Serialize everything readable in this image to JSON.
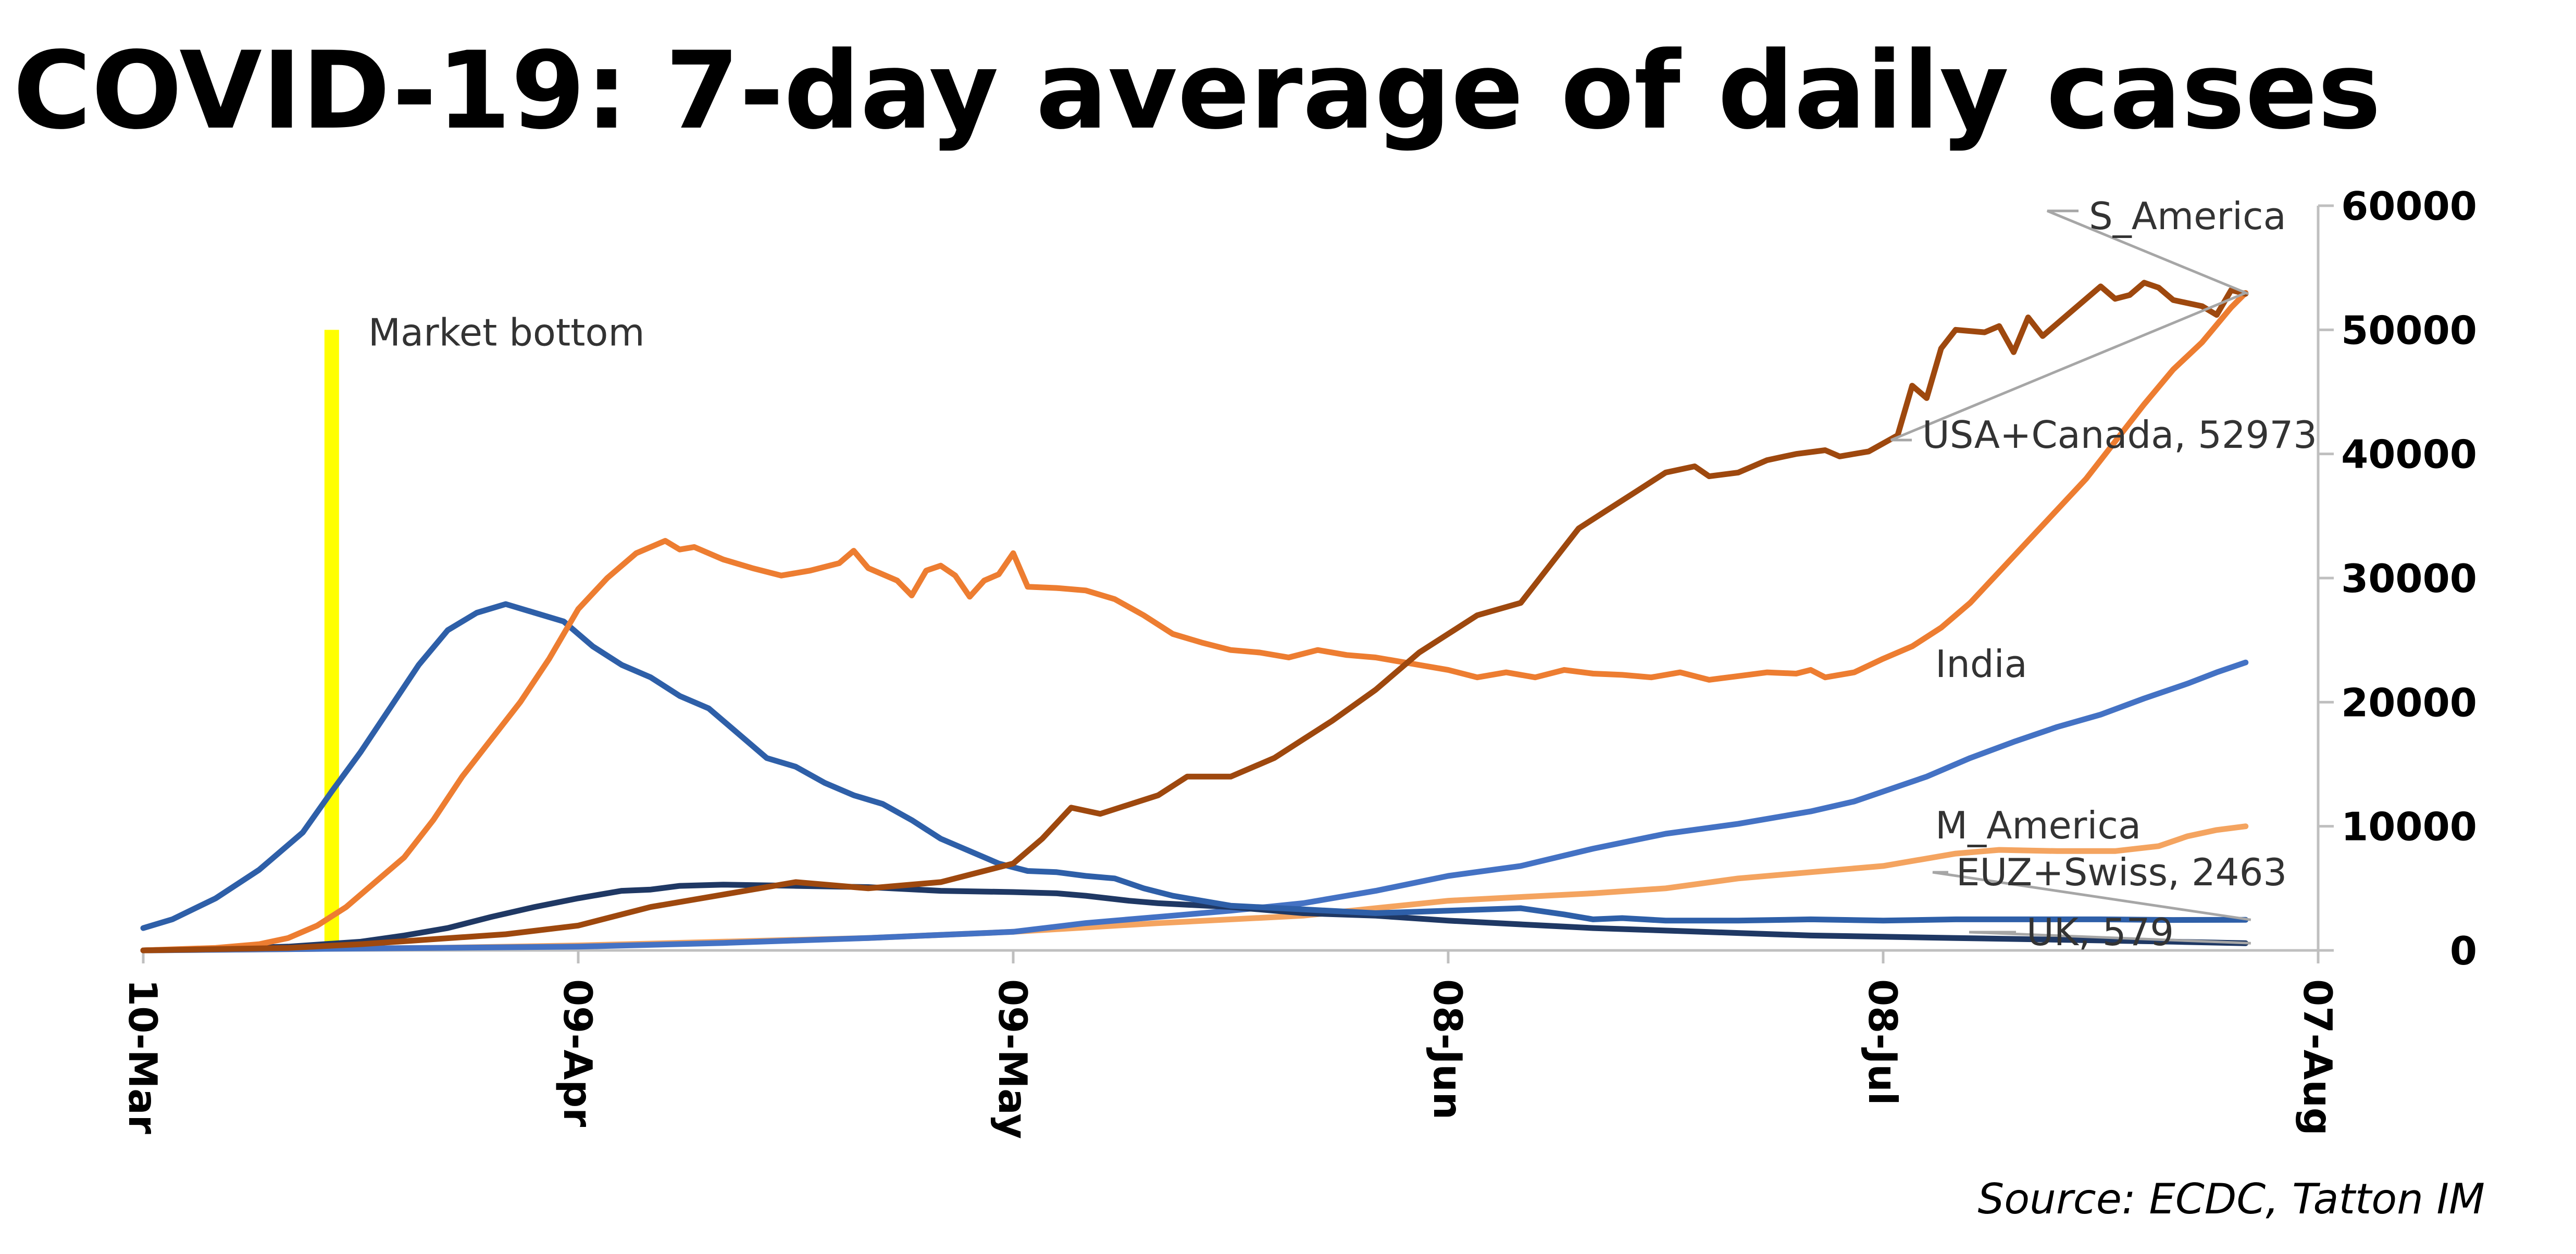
{
  "title": "COVID-19: 7-day average of daily cases",
  "source": "Source: ECDC, Tatton IM",
  "chart_data": {
    "type": "line",
    "title": "COVID-19: 7-day average of daily cases",
    "x_labels": [
      "10-Mar",
      "09-Apr",
      "09-May",
      "08-Jun",
      "08-Jul",
      "07-Aug"
    ],
    "x_range_days": [
      0,
      150
    ],
    "ylim": [
      0,
      60000
    ],
    "y_ticks": [
      0,
      10000,
      20000,
      30000,
      40000,
      50000,
      60000
    ],
    "y_axis_side": "right",
    "grid": false,
    "legend": "none (direct line labels)",
    "annotations": [
      {
        "label": "Market bottom",
        "x": "23-Mar",
        "y_range": [
          0,
          50000
        ],
        "color": "#FFFF00"
      }
    ],
    "series": [
      {
        "name": "S_America",
        "color": "#9E480E",
        "label": "S_America",
        "points": [
          [
            0,
            0
          ],
          [
            10,
            200
          ],
          [
            15,
            500
          ],
          [
            20,
            900
          ],
          [
            25,
            1300
          ],
          [
            30,
            2000
          ],
          [
            35,
            3500
          ],
          [
            40,
            4500
          ],
          [
            45,
            5500
          ],
          [
            50,
            5000
          ],
          [
            55,
            5500
          ],
          [
            60,
            7000
          ],
          [
            62,
            9000
          ],
          [
            64,
            11500
          ],
          [
            66,
            11000
          ],
          [
            70,
            12500
          ],
          [
            72,
            14000
          ],
          [
            75,
            14000
          ],
          [
            78,
            15500
          ],
          [
            80,
            17000
          ],
          [
            82,
            18500
          ],
          [
            85,
            21000
          ],
          [
            88,
            24000
          ],
          [
            90,
            25500
          ],
          [
            92,
            27000
          ],
          [
            95,
            28000
          ],
          [
            97,
            31000
          ],
          [
            99,
            34000
          ],
          [
            101,
            35500
          ],
          [
            103,
            37000
          ],
          [
            105,
            38500
          ],
          [
            107,
            39000
          ],
          [
            108,
            38200
          ],
          [
            110,
            38500
          ],
          [
            112,
            39500
          ],
          [
            114,
            40000
          ],
          [
            116,
            40300
          ],
          [
            117,
            39800
          ],
          [
            119,
            40200
          ],
          [
            121,
            41500
          ],
          [
            122,
            45500
          ],
          [
            123,
            44500
          ],
          [
            124,
            48500
          ],
          [
            125,
            50000
          ],
          [
            127,
            49800
          ],
          [
            128,
            50300
          ],
          [
            129,
            48200
          ],
          [
            130,
            51000
          ],
          [
            131,
            49500
          ],
          [
            133,
            51500
          ],
          [
            135,
            53500
          ],
          [
            136,
            52500
          ],
          [
            137,
            52800
          ],
          [
            138,
            53800
          ],
          [
            139,
            53400
          ],
          [
            140,
            52400
          ],
          [
            142,
            51900
          ],
          [
            143,
            51200
          ],
          [
            144,
            53200
          ],
          [
            145,
            52900
          ]
        ]
      },
      {
        "name": "USA+Canada",
        "color": "#ED7D31",
        "label": "USA+Canada, 52973",
        "points": [
          [
            0,
            0
          ],
          [
            5,
            200
          ],
          [
            8,
            500
          ],
          [
            10,
            1000
          ],
          [
            12,
            2000
          ],
          [
            14,
            3500
          ],
          [
            16,
            5500
          ],
          [
            18,
            7500
          ],
          [
            20,
            10500
          ],
          [
            22,
            14000
          ],
          [
            24,
            17000
          ],
          [
            26,
            20000
          ],
          [
            28,
            23500
          ],
          [
            30,
            27500
          ],
          [
            32,
            30000
          ],
          [
            34,
            32000
          ],
          [
            36,
            33000
          ],
          [
            37,
            32300
          ],
          [
            38,
            32500
          ],
          [
            40,
            31500
          ],
          [
            42,
            30800
          ],
          [
            44,
            30200
          ],
          [
            46,
            30600
          ],
          [
            48,
            31200
          ],
          [
            49,
            32200
          ],
          [
            50,
            30800
          ],
          [
            52,
            29800
          ],
          [
            53,
            28600
          ],
          [
            54,
            30600
          ],
          [
            55,
            31000
          ],
          [
            56,
            30200
          ],
          [
            57,
            28500
          ],
          [
            58,
            29800
          ],
          [
            59,
            30300
          ],
          [
            60,
            32000
          ],
          [
            61,
            29300
          ],
          [
            63,
            29200
          ],
          [
            65,
            29000
          ],
          [
            67,
            28300
          ],
          [
            69,
            27000
          ],
          [
            71,
            25500
          ],
          [
            73,
            24800
          ],
          [
            75,
            24200
          ],
          [
            77,
            24000
          ],
          [
            79,
            23600
          ],
          [
            81,
            24200
          ],
          [
            83,
            23800
          ],
          [
            85,
            23600
          ],
          [
            87,
            23200
          ],
          [
            90,
            22600
          ],
          [
            92,
            22000
          ],
          [
            94,
            22400
          ],
          [
            96,
            22000
          ],
          [
            98,
            22600
          ],
          [
            100,
            22300
          ],
          [
            102,
            22200
          ],
          [
            104,
            22000
          ],
          [
            106,
            22400
          ],
          [
            108,
            21800
          ],
          [
            110,
            22100
          ],
          [
            112,
            22400
          ],
          [
            114,
            22300
          ],
          [
            115,
            22600
          ],
          [
            116,
            22000
          ],
          [
            118,
            22400
          ],
          [
            120,
            23500
          ],
          [
            122,
            24500
          ],
          [
            124,
            26000
          ],
          [
            126,
            28000
          ],
          [
            128,
            30500
          ],
          [
            130,
            33000
          ],
          [
            132,
            35500
          ],
          [
            134,
            38000
          ],
          [
            136,
            41000
          ],
          [
            138,
            44000
          ],
          [
            140,
            46800
          ],
          [
            142,
            49000
          ],
          [
            144,
            51800
          ],
          [
            145,
            52973
          ]
        ]
      },
      {
        "name": "India",
        "color": "#4472C4",
        "label": "India",
        "points": [
          [
            0,
            0
          ],
          [
            10,
            100
          ],
          [
            20,
            200
          ],
          [
            30,
            300
          ],
          [
            40,
            600
          ],
          [
            50,
            1000
          ],
          [
            60,
            1500
          ],
          [
            65,
            2200
          ],
          [
            70,
            2700
          ],
          [
            75,
            3200
          ],
          [
            80,
            3800
          ],
          [
            85,
            4800
          ],
          [
            90,
            6000
          ],
          [
            95,
            6800
          ],
          [
            100,
            8200
          ],
          [
            105,
            9400
          ],
          [
            110,
            10200
          ],
          [
            115,
            11200
          ],
          [
            118,
            12000
          ],
          [
            120,
            12800
          ],
          [
            123,
            14000
          ],
          [
            126,
            15500
          ],
          [
            129,
            16800
          ],
          [
            132,
            18000
          ],
          [
            135,
            19000
          ],
          [
            138,
            20300
          ],
          [
            141,
            21500
          ],
          [
            143,
            22400
          ],
          [
            145,
            23200
          ]
        ]
      },
      {
        "name": "M_America",
        "color": "#F4A460",
        "label": "M_America",
        "points": [
          [
            0,
            0
          ],
          [
            20,
            200
          ],
          [
            30,
            400
          ],
          [
            40,
            700
          ],
          [
            50,
            1000
          ],
          [
            60,
            1500
          ],
          [
            70,
            2200
          ],
          [
            80,
            2800
          ],
          [
            85,
            3400
          ],
          [
            90,
            4000
          ],
          [
            95,
            4300
          ],
          [
            100,
            4600
          ],
          [
            105,
            5000
          ],
          [
            110,
            5800
          ],
          [
            115,
            6300
          ],
          [
            120,
            6800
          ],
          [
            125,
            7800
          ],
          [
            128,
            8100
          ],
          [
            132,
            8000
          ],
          [
            136,
            8000
          ],
          [
            139,
            8400
          ],
          [
            141,
            9200
          ],
          [
            143,
            9700
          ],
          [
            145,
            10000
          ]
        ]
      },
      {
        "name": "EUZ+Swiss",
        "color": "#2E5FA8",
        "label": "EUZ+Swiss, 2463",
        "points": [
          [
            0,
            1800
          ],
          [
            2,
            2500
          ],
          [
            5,
            4200
          ],
          [
            8,
            6500
          ],
          [
            11,
            9500
          ],
          [
            13,
            12800
          ],
          [
            15,
            16000
          ],
          [
            17,
            19500
          ],
          [
            19,
            23000
          ],
          [
            21,
            25800
          ],
          [
            23,
            27200
          ],
          [
            25,
            27900
          ],
          [
            27,
            27200
          ],
          [
            29,
            26500
          ],
          [
            31,
            24500
          ],
          [
            33,
            23000
          ],
          [
            35,
            22000
          ],
          [
            37,
            20500
          ],
          [
            39,
            19500
          ],
          [
            41,
            17500
          ],
          [
            43,
            15500
          ],
          [
            45,
            14800
          ],
          [
            47,
            13500
          ],
          [
            49,
            12500
          ],
          [
            51,
            11800
          ],
          [
            53,
            10500
          ],
          [
            55,
            9000
          ],
          [
            57,
            8000
          ],
          [
            59,
            7000
          ],
          [
            61,
            6400
          ],
          [
            63,
            6300
          ],
          [
            65,
            6000
          ],
          [
            67,
            5800
          ],
          [
            69,
            5000
          ],
          [
            71,
            4400
          ],
          [
            73,
            4000
          ],
          [
            75,
            3600
          ],
          [
            80,
            3300
          ],
          [
            85,
            3000
          ],
          [
            90,
            3200
          ],
          [
            95,
            3400
          ],
          [
            98,
            2900
          ],
          [
            100,
            2500
          ],
          [
            102,
            2600
          ],
          [
            105,
            2400
          ],
          [
            110,
            2400
          ],
          [
            115,
            2500
          ],
          [
            120,
            2400
          ],
          [
            125,
            2500
          ],
          [
            130,
            2500
          ],
          [
            135,
            2500
          ],
          [
            140,
            2450
          ],
          [
            145,
            2463
          ]
        ]
      },
      {
        "name": "UK",
        "color": "#1F3864",
        "label": "UK, 579",
        "points": [
          [
            0,
            0
          ],
          [
            10,
            300
          ],
          [
            15,
            700
          ],
          [
            18,
            1200
          ],
          [
            21,
            1800
          ],
          [
            24,
            2700
          ],
          [
            27,
            3500
          ],
          [
            30,
            4200
          ],
          [
            33,
            4800
          ],
          [
            35,
            4900
          ],
          [
            37,
            5200
          ],
          [
            40,
            5300
          ],
          [
            45,
            5200
          ],
          [
            50,
            5100
          ],
          [
            55,
            4800
          ],
          [
            60,
            4700
          ],
          [
            63,
            4600
          ],
          [
            65,
            4400
          ],
          [
            68,
            4000
          ],
          [
            70,
            3800
          ],
          [
            75,
            3500
          ],
          [
            80,
            3000
          ],
          [
            85,
            2800
          ],
          [
            90,
            2400
          ],
          [
            95,
            2100
          ],
          [
            100,
            1800
          ],
          [
            105,
            1600
          ],
          [
            110,
            1400
          ],
          [
            115,
            1200
          ],
          [
            120,
            1100
          ],
          [
            125,
            1000
          ],
          [
            130,
            900
          ],
          [
            135,
            800
          ],
          [
            140,
            700
          ],
          [
            145,
            579
          ]
        ]
      }
    ]
  }
}
